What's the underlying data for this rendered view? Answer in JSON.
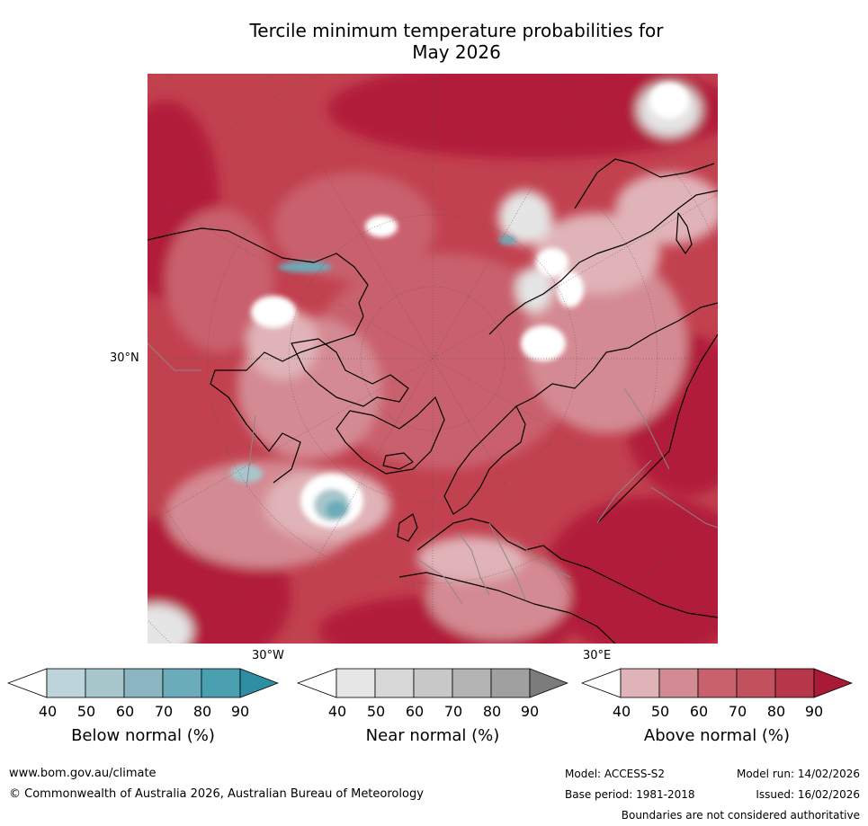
{
  "title": {
    "line1": "Tercile minimum temperature probabilities for",
    "line2": "May 2026"
  },
  "map": {
    "projection": "north-polar-stereographic",
    "labels": {
      "lat30": "30°N",
      "lon_w": "30°W",
      "lon_e": "30°E"
    },
    "colors": {
      "above_90": "#b21f3b",
      "above_80": "#c2414f",
      "above_70": "#c9616d",
      "above_60": "#d48a93",
      "above_50": "#e0b3b8",
      "near": "#e5e5e5",
      "below_50": "#a7c6cc",
      "below_60": "#6aacba",
      "white": "#ffffff",
      "coast": "#000000",
      "border": "#888888",
      "grid": "#555555"
    }
  },
  "colorbars": [
    {
      "id": "below",
      "title": "Below normal (%)",
      "ticks": [
        "40",
        "50",
        "60",
        "70",
        "80",
        "90"
      ],
      "colors": [
        "#ffffff",
        "#bdd4da",
        "#a7c6cc",
        "#8ab5c1",
        "#6aacba",
        "#4aa0b0",
        "#2e8ea3"
      ]
    },
    {
      "id": "near",
      "title": "Near normal (%)",
      "ticks": [
        "40",
        "50",
        "60",
        "70",
        "80",
        "90"
      ],
      "colors": [
        "#ffffff",
        "#e6e6e6",
        "#d8d8d8",
        "#c8c8c8",
        "#b4b4b4",
        "#a0a0a0",
        "#7c7c7c"
      ]
    },
    {
      "id": "above",
      "title": "Above normal (%)",
      "ticks": [
        "40",
        "50",
        "60",
        "70",
        "80",
        "90"
      ],
      "colors": [
        "#ffffff",
        "#e0b3b8",
        "#d48a93",
        "#c9616d",
        "#c2515e",
        "#b8364a",
        "#a81a35"
      ]
    }
  ],
  "footer": {
    "url": "www.bom.gov.au/climate",
    "copyright": "© Commonwealth of Australia 2026, Australian Bureau of Meteorology",
    "model": "Model: ACCESS-S2",
    "model_run": "Model run: 14/02/2026",
    "base_period": "Base period: 1981-2018",
    "issued": "Issued: 16/02/2026",
    "disclaimer": "Boundaries are not considered authoritative"
  }
}
